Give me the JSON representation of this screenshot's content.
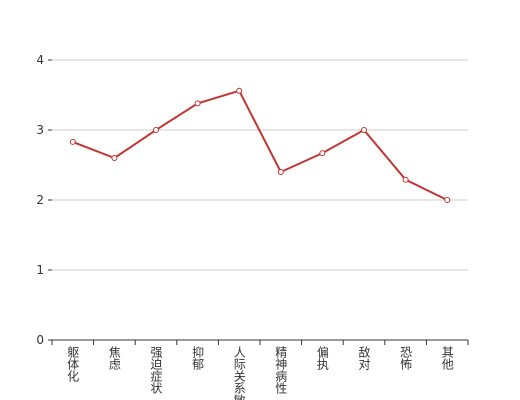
{
  "chart_data": {
    "type": "line",
    "categories": [
      "躯体化",
      "焦虑",
      "强迫症状",
      "抑郁",
      "人际关系敏感",
      "精神病性",
      "偏执",
      "敌对",
      "恐怖",
      "其他"
    ],
    "values": [
      2.83,
      2.6,
      3.0,
      3.38,
      3.56,
      2.4,
      2.67,
      3.0,
      2.29,
      2.0
    ],
    "color": "#c23531",
    "ylim": [
      0,
      4
    ],
    "yticks": [
      0,
      1,
      2,
      3,
      4
    ],
    "grid": true
  }
}
